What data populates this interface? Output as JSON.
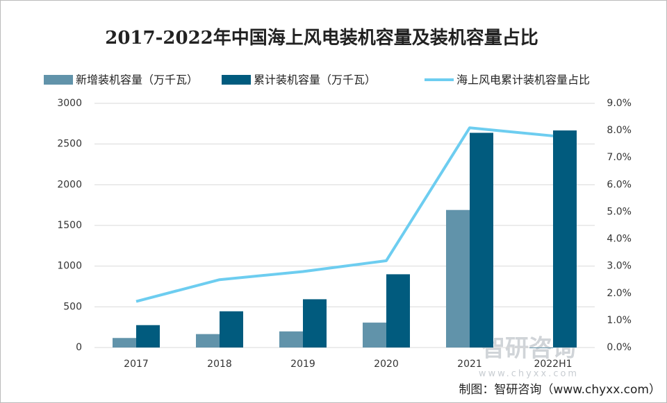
{
  "chart_data": {
    "type": "bar",
    "title": "2017-2022年中国海上风电装机容量及装机容量占比",
    "categories": [
      "2017",
      "2018",
      "2019",
      "2020",
      "2021",
      "2022H1"
    ],
    "series": [
      {
        "name": "新增装机容量（万千瓦）",
        "type": "bar",
        "color": "#6193aa",
        "values": [
          117,
          165,
          198,
          306,
          1690,
          0
        ]
      },
      {
        "name": "累计装机容量（万千瓦）",
        "type": "bar",
        "color": "#015b7e",
        "values": [
          275,
          445,
          593,
          900,
          2638,
          2667
        ]
      },
      {
        "name": "海上风电累计装机容量占比",
        "type": "line",
        "axis": "y2",
        "color": "#6dcdf0",
        "values": [
          1.7,
          2.5,
          2.8,
          3.2,
          8.1,
          7.8
        ]
      }
    ],
    "ylim": [
      0,
      3000
    ],
    "yticks": [
      0,
      500,
      1000,
      1500,
      2000,
      2500,
      3000
    ],
    "y2lim": [
      0,
      9
    ],
    "y2ticks": [
      {
        "value": 0,
        "label": "0.0%"
      },
      {
        "value": 1,
        "label": "1.0%"
      },
      {
        "value": 2,
        "label": "2.0%"
      },
      {
        "value": 3,
        "label": "3.0%"
      },
      {
        "value": 4,
        "label": "4.0%"
      },
      {
        "value": 5,
        "label": "5.0%"
      },
      {
        "value": 6,
        "label": "6.0%"
      },
      {
        "value": 7,
        "label": "7.0%"
      },
      {
        "value": 8,
        "label": "8.0%"
      },
      {
        "value": 9,
        "label": "9.0%"
      }
    ],
    "grid": true,
    "watermark": "智研咨询",
    "watermark_url": "www.chyxx.com",
    "source": "制图：智研咨询（www.chyxx.com）"
  }
}
